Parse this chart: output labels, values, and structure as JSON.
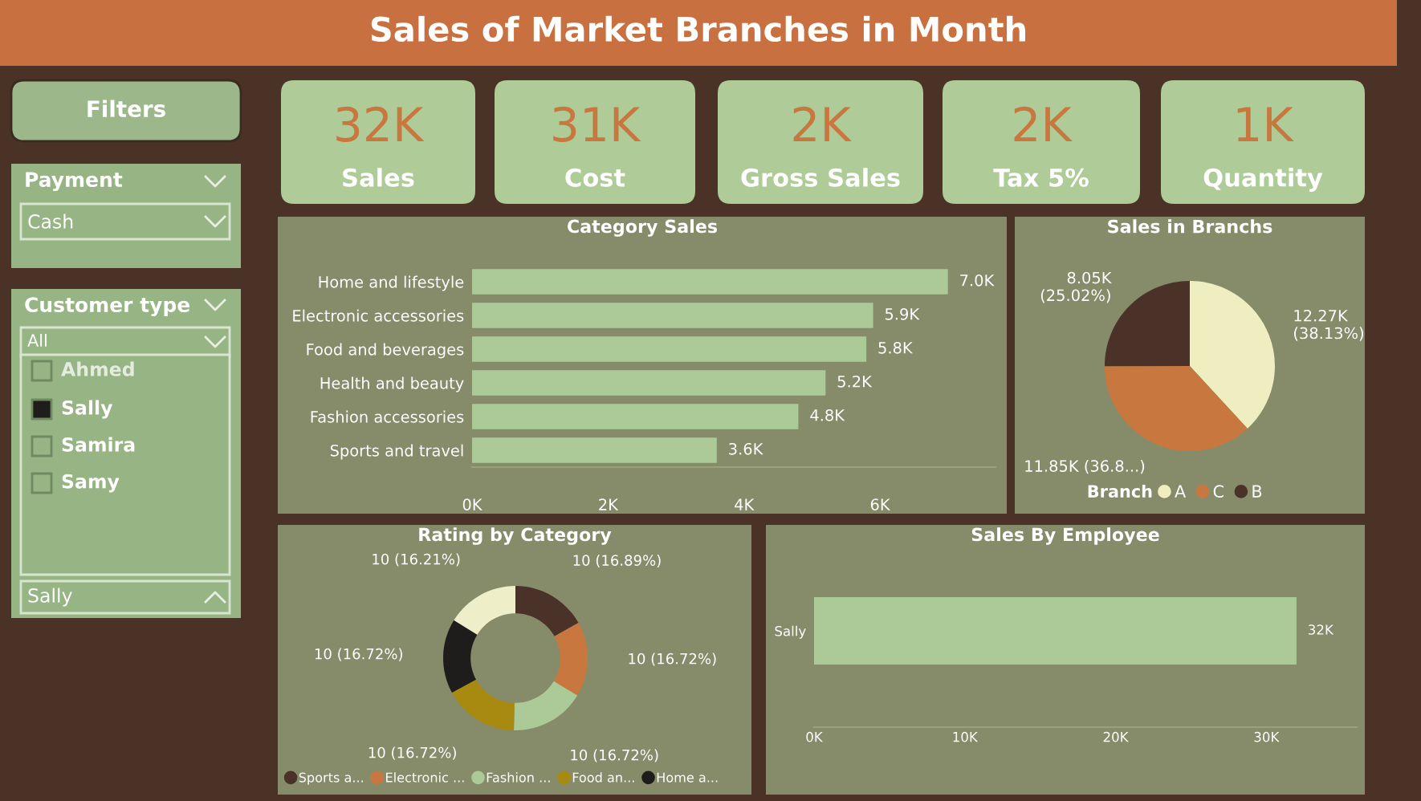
{
  "chart_data": [
    {
      "type": "other",
      "title": "Filters",
      "annotations": [
        "Payment",
        "Cash",
        "Customer type",
        "All",
        "Ahmed",
        "Sally",
        "Samira",
        "Samy",
        "Sally"
      ]
    },
    {
      "type": "other",
      "title": "Sales of Market Branches in Month",
      "categories": [
        "Sales",
        "Cost",
        "Gross Sales",
        "Tax 5%",
        "Quantity"
      ],
      "value_labels": [
        "32K",
        "31K",
        "2K",
        "2K",
        "1K"
      ]
    },
    {
      "type": "bar",
      "orientation": "horizontal",
      "title": "Category Sales",
      "categories": [
        "Home and lifestyle",
        "Electronic accessories",
        "Food and beverages",
        "Health and beauty",
        "Fashion accessories",
        "Sports and travel"
      ],
      "values": [
        7000,
        5900,
        5800,
        5200,
        4800,
        3600
      ],
      "value_labels": [
        "7.0K",
        "5.9K",
        "5.8K",
        "5.2K",
        "4.8K",
        "3.6K"
      ],
      "color": "#abca97",
      "xlim": [
        0,
        7700
      ],
      "xticks": [
        {
          "value": 0,
          "label": "0K"
        },
        {
          "value": 2000,
          "label": "2K"
        },
        {
          "value": 4000,
          "label": "4K"
        },
        {
          "value": 6000,
          "label": "6K"
        }
      ]
    },
    {
      "type": "pie",
      "title": "Sales in Branchs",
      "categories": [
        "A",
        "C",
        "B"
      ],
      "values": [
        12270,
        11850,
        8050
      ],
      "value_labels": [
        "12.27K\n(38.13%)",
        "11.85K (36.8...)",
        "8.05K\n(25.02%)"
      ],
      "colors": [
        "#eeeec0",
        "#c8783f",
        "#4a3228"
      ],
      "legend": "bottom",
      "legend_title": "Branch"
    },
    {
      "type": "donut",
      "title": "Rating by Category",
      "categories": [
        "Sports a...",
        "Electronic ...",
        "Fashion ...",
        "Food an...",
        "Home a...",
        null
      ],
      "values": [
        16.89,
        16.72,
        16.72,
        16.72,
        16.72,
        16.21
      ],
      "value_labels": [
        "10 (16.89%)",
        "10 (16.72%)",
        "10 (16.72%)",
        "10 (16.72%)",
        "10 (16.72%)",
        "10 (16.21%)"
      ],
      "colors": [
        "#4a3228",
        "#c8783f",
        "#abca97",
        "#a88a10",
        "#1f1c1c",
        "#eeeec8"
      ],
      "legend": "bottom"
    },
    {
      "type": "bar",
      "orientation": "horizontal",
      "title": "Sales By Employee",
      "categories": [
        "Sally"
      ],
      "values": [
        32000
      ],
      "value_labels": [
        "32K"
      ],
      "color": "#abca97",
      "xlim": [
        0,
        36000
      ],
      "xticks": [
        {
          "value": 0,
          "label": "0K"
        },
        {
          "value": 10000,
          "label": "10K"
        },
        {
          "value": 20000,
          "label": "20K"
        },
        {
          "value": 30000,
          "label": "30K"
        }
      ]
    }
  ]
}
